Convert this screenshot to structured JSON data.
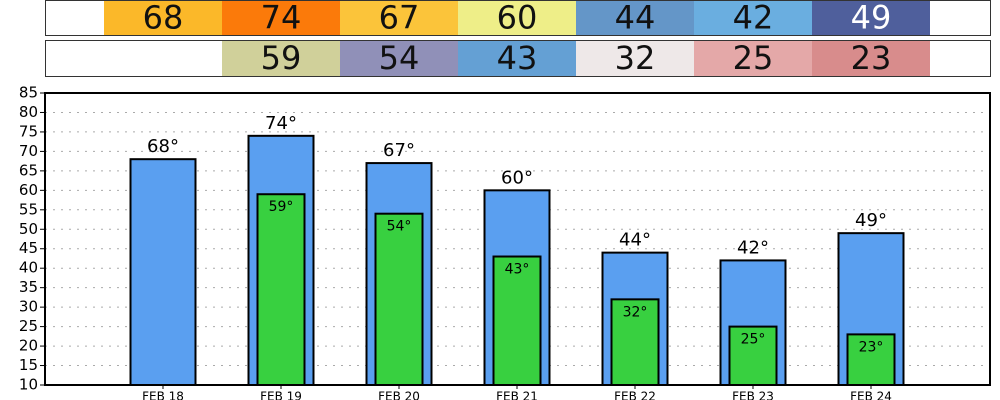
{
  "chart_data": {
    "type": "bar",
    "categories": [
      "FEB 18",
      "FEB 19",
      "FEB 20",
      "FEB 21",
      "FEB 22",
      "FEB 23",
      "FEB 24"
    ],
    "series": [
      {
        "name": "High",
        "color": "#5a9ff0",
        "values": [
          68,
          74,
          67,
          60,
          44,
          42,
          49
        ],
        "value_labels": [
          "68°",
          "74°",
          "67°",
          "60°",
          "44°",
          "42°",
          "49°"
        ],
        "cell_colors": [
          "#fbb829",
          "#fb7a0a",
          "#fbc43a",
          "#eeee88",
          "#6496c8",
          "#6aaee0",
          "#4f5f9c"
        ]
      },
      {
        "name": "Low",
        "color": "#38d040",
        "values": [
          null,
          59,
          54,
          43,
          32,
          25,
          23
        ],
        "value_labels": [
          null,
          "59°",
          "54°",
          "43°",
          "32°",
          "25°",
          "23°"
        ],
        "cell_colors": [
          null,
          "#d0d09a",
          "#9090b8",
          "#64a0d4",
          "#eee8e8",
          "#e4a8a8",
          "#d88c8c"
        ]
      }
    ],
    "ylim": [
      10,
      85
    ],
    "yticks": [
      10,
      15,
      20,
      25,
      30,
      35,
      40,
      45,
      50,
      55,
      60,
      65,
      70,
      75,
      80,
      85
    ],
    "grid": true
  }
}
